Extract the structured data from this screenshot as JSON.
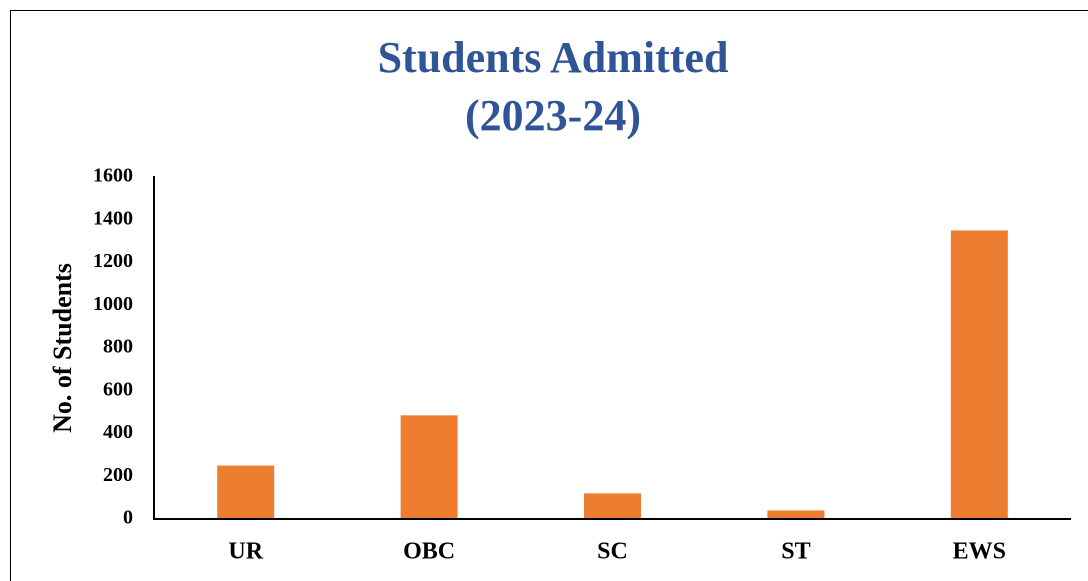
{
  "chart_data": {
    "type": "bar",
    "title": [
      "Students Admitted",
      "(2023-24)"
    ],
    "y_label": "No. of Students",
    "categories": [
      "UR",
      "OBC",
      "SC",
      "ST",
      "EWS"
    ],
    "values": [
      250,
      485,
      120,
      40,
      1350
    ],
    "color": "#ed7d31",
    "ylim": [
      0,
      1600
    ],
    "yticks": [
      0,
      200,
      400,
      600,
      800,
      1000,
      1200,
      1400,
      1600
    ],
    "grid": false
  }
}
